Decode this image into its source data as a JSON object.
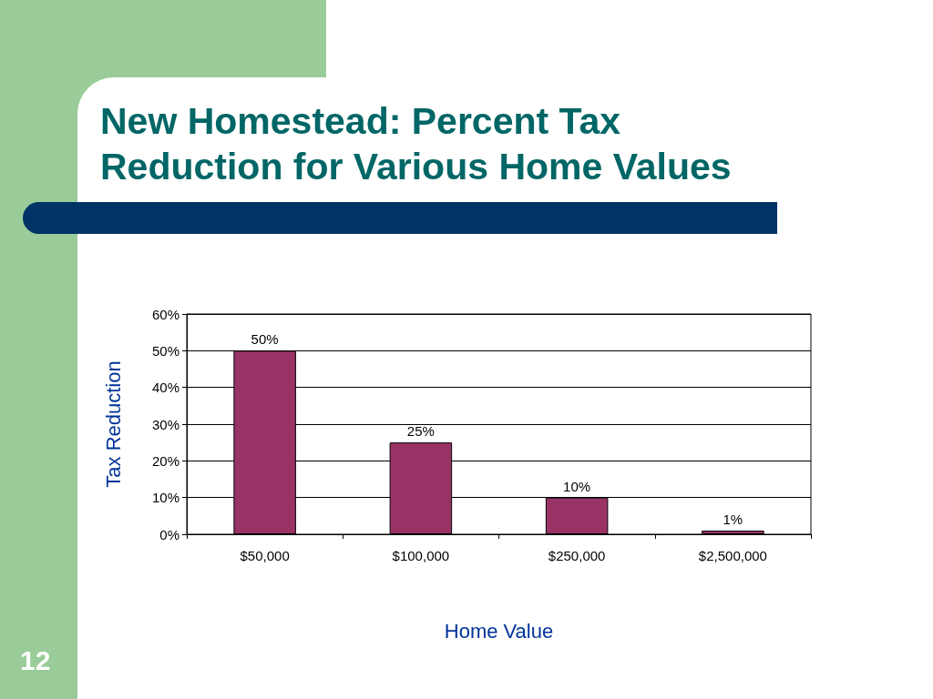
{
  "chart_data": {
    "type": "bar",
    "title": "New Homestead: Percent Tax Reduction for Various Home Values",
    "xlabel": "Home Value",
    "ylabel": "Tax Reduction",
    "categories": [
      "$50,000",
      "$100,000",
      "$250,000",
      "$2,500,000"
    ],
    "values": [
      50,
      25,
      10,
      1
    ],
    "value_labels": [
      "50%",
      "25%",
      "10%",
      "1%"
    ],
    "color": "#993366",
    "ylim": [
      0,
      60
    ],
    "yticks": [
      {
        "value": 0,
        "label": "0%"
      },
      {
        "value": 10,
        "label": "10%"
      },
      {
        "value": 20,
        "label": "20%"
      },
      {
        "value": 30,
        "label": "30%"
      },
      {
        "value": 40,
        "label": "40%"
      },
      {
        "value": 50,
        "label": "50%"
      },
      {
        "value": 60,
        "label": "60%"
      }
    ],
    "grid": "y",
    "annotations": [
      "12"
    ]
  }
}
